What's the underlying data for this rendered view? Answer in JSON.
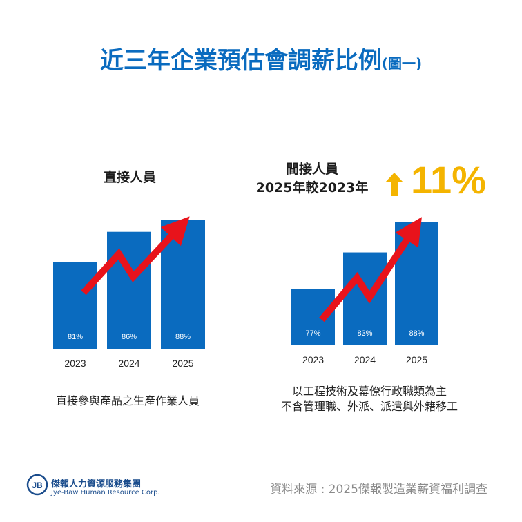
{
  "title": {
    "main": "近三年企業預估會調薪比例",
    "sub": "(圖一)"
  },
  "colors": {
    "bar": "#0a6bbf",
    "trend_arrow": "#e8131b",
    "highlight": "#f4b400"
  },
  "chart_data": [
    {
      "type": "bar",
      "title": "直接人員",
      "categories": [
        "2023",
        "2024",
        "2025"
      ],
      "values": [
        81,
        86,
        88
      ],
      "value_labels": [
        "81%",
        "86%",
        "88%"
      ],
      "description": "直接參與產品之生產作業人員"
    },
    {
      "type": "bar",
      "title_line1": "間接人員",
      "title_line2": "2025年較2023年",
      "change": "11%",
      "categories": [
        "2023",
        "2024",
        "2025"
      ],
      "values": [
        77,
        83,
        88
      ],
      "value_labels": [
        "77%",
        "83%",
        "88%"
      ],
      "description_line1": "以工程技術及幕僚行政職類為主",
      "description_line2": "不含管理職、外派、派遣與外籍移工"
    }
  ],
  "footer": {
    "logo_name": "傑報人力資源服務集團",
    "logo_en": "Jye-Baw Human Resource Corp.",
    "source": "資料來源 : 2025傑報製造業薪資福利調查"
  }
}
